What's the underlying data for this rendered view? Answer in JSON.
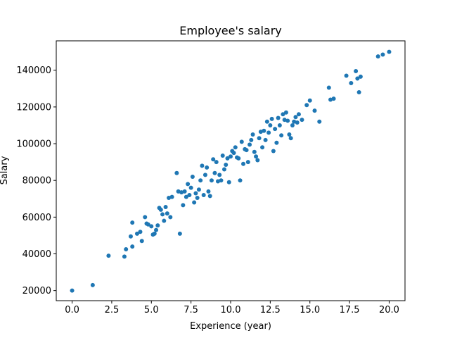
{
  "chart_data": {
    "type": "scatter",
    "title": "Employee's salary",
    "xlabel": "Experience (year)",
    "ylabel": "Salary",
    "xlim": [
      -1,
      21
    ],
    "ylim": [
      14500,
      156000
    ],
    "xticks": [
      0.0,
      2.5,
      5.0,
      7.5,
      10.0,
      12.5,
      15.0,
      17.5,
      20.0
    ],
    "xtick_labels": [
      "0.0",
      "2.5",
      "5.0",
      "7.5",
      "10.0",
      "12.5",
      "15.0",
      "17.5",
      "20.0"
    ],
    "yticks": [
      20000,
      40000,
      60000,
      80000,
      100000,
      120000,
      140000
    ],
    "ytick_labels": [
      "20000",
      "40000",
      "60000",
      "80000",
      "100000",
      "120000",
      "140000"
    ],
    "grid": false,
    "marker_color": "#1f77b4",
    "series": [
      {
        "x": [
          0.0,
          1.3,
          2.3,
          3.3,
          3.4,
          3.7,
          3.8,
          3.8,
          4.1,
          4.3,
          4.4,
          4.6,
          4.7,
          4.8,
          5.0,
          5.1,
          5.2,
          5.3,
          5.4,
          5.5,
          5.6,
          5.7,
          5.8,
          5.9,
          6.0,
          6.1,
          6.2,
          6.3,
          6.6,
          6.7,
          6.8,
          6.9,
          7.0,
          7.1,
          7.2,
          7.3,
          7.4,
          7.5,
          7.6,
          7.7,
          7.8,
          7.9,
          8.0,
          8.1,
          8.2,
          8.3,
          8.4,
          8.5,
          8.6,
          8.7,
          8.8,
          8.9,
          9.0,
          9.1,
          9.2,
          9.3,
          9.4,
          9.5,
          9.6,
          9.7,
          9.8,
          9.9,
          10.0,
          10.1,
          10.2,
          10.3,
          10.4,
          10.5,
          10.6,
          10.7,
          10.8,
          10.9,
          11.0,
          11.1,
          11.2,
          11.3,
          11.4,
          11.5,
          11.6,
          11.7,
          11.8,
          11.9,
          12.0,
          12.1,
          12.2,
          12.3,
          12.4,
          12.5,
          12.6,
          12.7,
          12.8,
          12.9,
          13.0,
          13.1,
          13.2,
          13.3,
          13.4,
          13.5,
          13.6,
          13.7,
          13.8,
          13.9,
          14.0,
          14.1,
          14.2,
          14.3,
          14.5,
          14.8,
          15.0,
          15.3,
          15.6,
          16.2,
          16.3,
          16.5,
          17.3,
          17.6,
          17.9,
          18.0,
          18.1,
          18.2,
          19.3,
          19.6,
          20.0
        ],
        "y": [
          20000,
          23000,
          39000,
          38500,
          42500,
          49500,
          44000,
          57000,
          51000,
          52000,
          47000,
          60000,
          56500,
          56000,
          55000,
          50500,
          51000,
          53000,
          55500,
          65000,
          64000,
          61500,
          58000,
          65500,
          62000,
          70500,
          60000,
          71000,
          84000,
          74000,
          51000,
          73500,
          66500,
          74000,
          71000,
          78000,
          72000,
          76000,
          82000,
          68000,
          73000,
          70500,
          75000,
          80000,
          88000,
          72000,
          83000,
          87000,
          74000,
          71500,
          80000,
          91500,
          84000,
          90000,
          79500,
          83000,
          80000,
          93500,
          86000,
          88500,
          92000,
          79000,
          93000,
          96000,
          95000,
          98000,
          92500,
          92000,
          80000,
          101000,
          89000,
          97000,
          96500,
          90000,
          99500,
          102000,
          105000,
          95500,
          93000,
          91000,
          103000,
          106500,
          98000,
          107000,
          102000,
          112000,
          106000,
          110000,
          113500,
          96000,
          108000,
          100500,
          114000,
          110000,
          104500,
          116000,
          113000,
          117000,
          112500,
          105000,
          103000,
          110000,
          112000,
          114500,
          111500,
          116000,
          113000,
          121000,
          123500,
          118000,
          112000,
          130500,
          124000,
          124500,
          137000,
          133000,
          139500,
          135500,
          128000,
          136500,
          147500,
          148500,
          150000
        ]
      }
    ]
  }
}
